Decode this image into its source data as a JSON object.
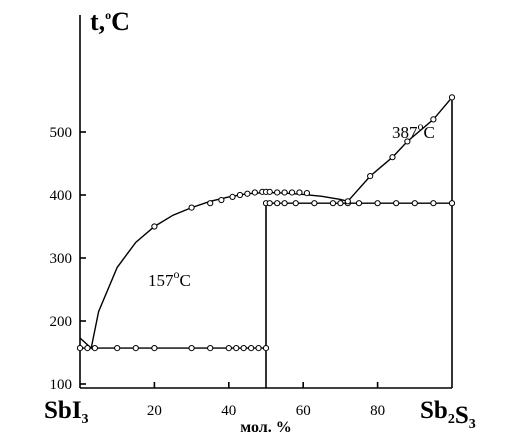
{
  "chart_data": {
    "type": "scatter",
    "title": "",
    "ylabel": {
      "main": "t,",
      "sup": "o",
      "unit": "C"
    },
    "xlabel": "мол. %",
    "xlim": [
      0,
      100
    ],
    "ylim": [
      30,
      580
    ],
    "x_ticks": [
      20,
      40,
      60,
      80
    ],
    "y_ticks": [
      100,
      200,
      300,
      400,
      500
    ],
    "components": {
      "left": {
        "parts": [
          [
            "Sb",
            ""
          ],
          [
            "I",
            "3"
          ]
        ]
      },
      "right": {
        "parts": [
          [
            "Sb",
            "2"
          ],
          [
            "S",
            "3"
          ]
        ]
      }
    },
    "annotations": [
      {
        "value": "157",
        "sup": "o",
        "unit": "C"
      },
      {
        "value": "387",
        "sup": "o",
        "unit": "C"
      }
    ],
    "vertical_line_x": 50,
    "series": [
      {
        "style": "curve",
        "x": [
          0,
          3,
          5,
          10,
          15,
          20,
          25,
          30,
          35,
          40,
          45,
          50,
          55,
          60,
          65,
          70,
          72
        ],
        "y": [
          173,
          157,
          215,
          285,
          325,
          350,
          368,
          380,
          390,
          397,
          402,
          404,
          403,
          401,
          398,
          393,
          390
        ]
      },
      {
        "style": "points",
        "x": [
          20,
          30,
          35,
          38,
          41,
          43,
          45,
          47,
          49,
          50,
          51,
          53,
          55,
          57,
          59,
          61
        ],
        "y": [
          350,
          380,
          387,
          392,
          397,
          400,
          402,
          404,
          405,
          405,
          405,
          404,
          404,
          404,
          404,
          403
        ]
      },
      {
        "style": "line-points",
        "x": [
          0,
          2,
          4,
          10,
          15,
          20,
          30,
          35,
          40,
          42,
          44,
          46,
          48,
          50
        ],
        "y": [
          157,
          157,
          157,
          157,
          157,
          157,
          157,
          157,
          157,
          157,
          157,
          157,
          157,
          157
        ]
      },
      {
        "style": "line-points",
        "x": [
          50,
          51,
          53,
          55,
          58,
          63,
          68,
          70,
          72,
          75,
          80,
          85,
          90,
          95,
          100
        ],
        "y": [
          387,
          387,
          387,
          387,
          387,
          387,
          387,
          387,
          387,
          387,
          387,
          387,
          387,
          387,
          387
        ]
      },
      {
        "style": "line-points",
        "x": [
          72,
          78,
          84,
          88,
          95,
          100
        ],
        "y": [
          390,
          430,
          460,
          485,
          520,
          555
        ]
      }
    ]
  }
}
